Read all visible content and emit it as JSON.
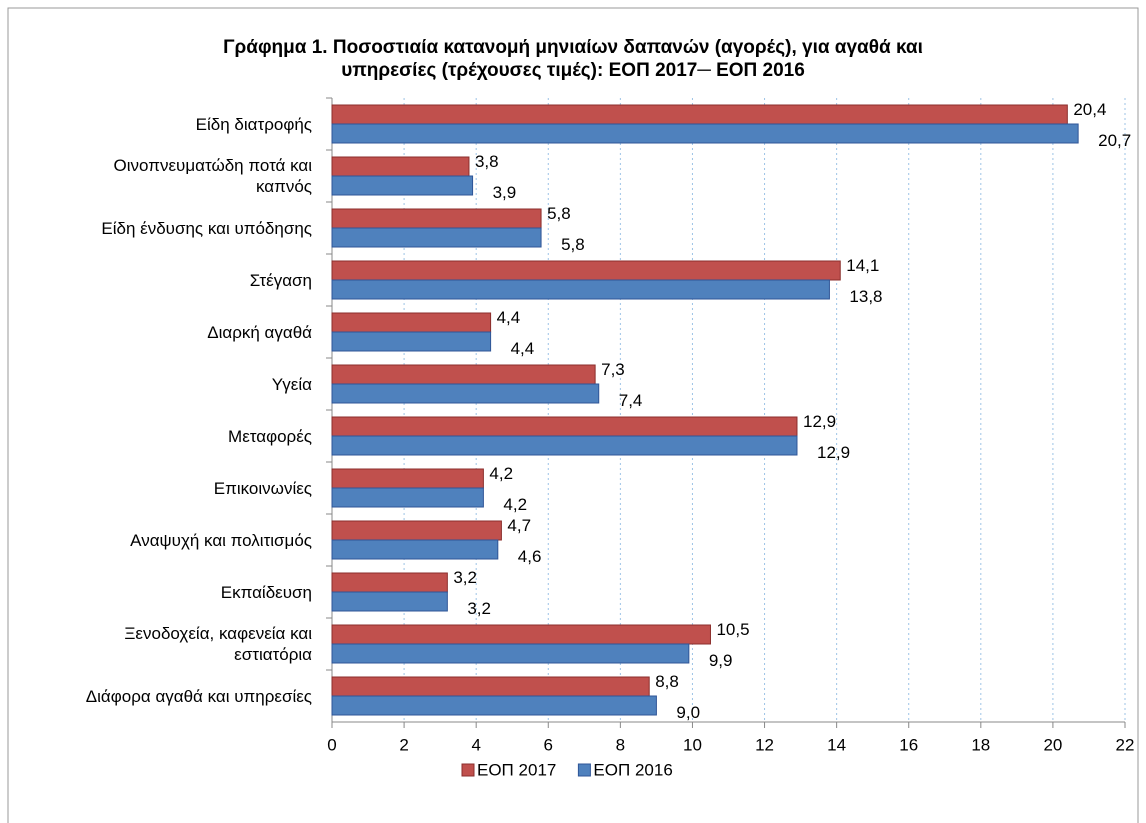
{
  "chart_data": {
    "type": "hbar",
    "title": "Γράφημα 1. Ποσοστιαία κατανομή μηνιαίων δαπανών (αγορές), για αγαθά και\nυπηρεσίες (τρέχουσες τιμές): ΕΟΠ 2017─ ΕΟΠ 2016",
    "categories": [
      "Είδη διατροφής",
      "Οινοπνευματώδη ποτά και\nκαπνός",
      "Είδη ένδυσης και υπόδησης",
      "Στέγαση",
      "Διαρκή αγαθά",
      "Υγεία",
      "Μεταφορές",
      "Επικοινωνίες",
      "Αναψυχή και πολιτισμός",
      "Εκπαίδευση",
      "Ξενοδοχεία, καφενεία και\nεστιατόρια",
      "Διάφορα αγαθά και υπηρεσίες"
    ],
    "series": [
      {
        "name": "ΕΟΠ 2017",
        "color": "#c0504d",
        "values": [
          20.4,
          3.8,
          5.8,
          14.1,
          4.4,
          7.3,
          12.9,
          4.2,
          4.7,
          3.2,
          10.5,
          8.8
        ],
        "value_labels": [
          "20,4",
          "3,8",
          "5,8",
          "14,1",
          "4,4",
          "7,3",
          "12,9",
          "4,2",
          "4,7",
          "3,2",
          "10,5",
          "8,8"
        ]
      },
      {
        "name": "ΕΟΠ 2016",
        "color": "#4f81bd",
        "values": [
          20.7,
          3.9,
          5.8,
          13.8,
          4.4,
          7.4,
          12.9,
          4.2,
          4.6,
          3.2,
          9.9,
          9.0
        ],
        "value_labels": [
          "20,7",
          "3,9",
          "5,8",
          "13,8",
          "4,4",
          "7,4",
          "12,9",
          "4,2",
          "4,6",
          "3,2",
          "9,9",
          "9,0"
        ]
      }
    ],
    "xlim": [
      0,
      22
    ],
    "xticks": [
      0,
      2,
      4,
      6,
      8,
      10,
      12,
      14,
      16,
      18,
      20,
      22
    ],
    "grid": true,
    "legend": "bottom"
  }
}
